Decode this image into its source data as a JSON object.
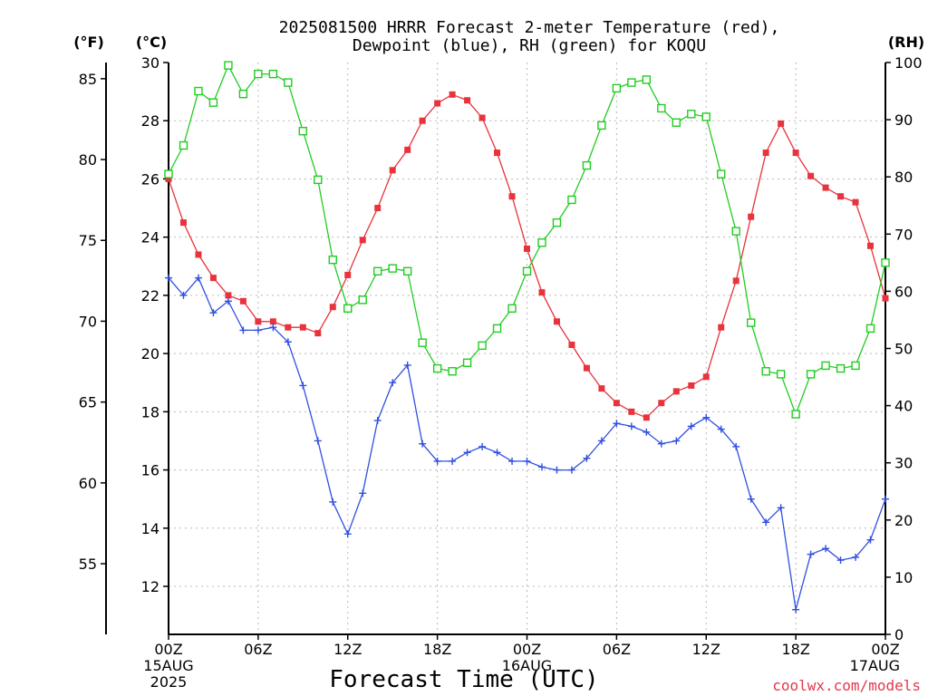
{
  "title_line1": "2025081500 HRRR Forecast 2-meter Temperature (red),",
  "title_line2": "Dewpoint (blue), RH (green) for KOQU",
  "unit_f": "(°F)",
  "unit_c": "(°C)",
  "unit_rh": "(RH)",
  "xlabel": "Forecast Time (UTC)",
  "credit": "coolwx.com/models",
  "chart_data": {
    "type": "line",
    "x_hours": [
      0,
      1,
      2,
      3,
      4,
      5,
      6,
      7,
      8,
      9,
      10,
      11,
      12,
      13,
      14,
      15,
      16,
      17,
      18,
      19,
      20,
      21,
      22,
      23,
      24,
      25,
      26,
      27,
      28,
      29,
      30,
      31,
      32,
      33,
      34,
      35,
      36,
      37,
      38,
      39,
      40,
      41,
      42,
      43,
      44,
      45,
      46,
      47,
      48
    ],
    "x_ticks": [
      {
        "hour": 0,
        "lines": [
          "00Z",
          "15AUG",
          "2025"
        ]
      },
      {
        "hour": 6,
        "lines": [
          "06Z"
        ]
      },
      {
        "hour": 12,
        "lines": [
          "12Z"
        ]
      },
      {
        "hour": 18,
        "lines": [
          "18Z"
        ]
      },
      {
        "hour": 24,
        "lines": [
          "00Z",
          "16AUG"
        ]
      },
      {
        "hour": 30,
        "lines": [
          "06Z"
        ]
      },
      {
        "hour": 36,
        "lines": [
          "12Z"
        ]
      },
      {
        "hour": 42,
        "lines": [
          "18Z"
        ]
      },
      {
        "hour": 48,
        "lines": [
          "00Z",
          "17AUG"
        ]
      }
    ],
    "xlim": [
      0,
      48
    ],
    "y_left_c": {
      "lim": [
        10.35,
        30
      ],
      "ticks": [
        12,
        14,
        16,
        18,
        20,
        22,
        24,
        26,
        28,
        30
      ]
    },
    "y_left_f": {
      "ticks": [
        55,
        60,
        65,
        70,
        75,
        80,
        85
      ]
    },
    "y_right_rh": {
      "lim": [
        0,
        100
      ],
      "ticks": [
        0,
        10,
        20,
        30,
        40,
        50,
        60,
        70,
        80,
        90,
        100
      ]
    },
    "grid": true,
    "series": [
      {
        "name": "Temperature",
        "axis": "c",
        "color": "#e8323c",
        "marker": "square-filled",
        "values": [
          26.0,
          24.5,
          23.4,
          22.6,
          22.0,
          21.8,
          21.1,
          21.1,
          20.9,
          20.9,
          20.7,
          21.6,
          22.7,
          23.9,
          25.0,
          26.3,
          27.0,
          28.0,
          28.6,
          28.9,
          28.7,
          28.1,
          26.9,
          25.4,
          23.6,
          22.1,
          21.1,
          20.3,
          19.5,
          18.8,
          18.3,
          18.0,
          17.8,
          18.3,
          18.7,
          18.9,
          19.2,
          20.9,
          22.5,
          24.7,
          26.9,
          27.9,
          26.9,
          26.1,
          25.7,
          25.4,
          25.2,
          23.7,
          21.9
        ]
      },
      {
        "name": "Dewpoint",
        "axis": "c",
        "color": "#2f4fe0",
        "marker": "plus",
        "values": [
          22.6,
          22.0,
          22.6,
          21.4,
          21.8,
          20.8,
          20.8,
          20.9,
          20.4,
          18.9,
          17.0,
          14.9,
          13.8,
          15.2,
          17.7,
          19.0,
          19.6,
          16.9,
          16.3,
          16.3,
          16.6,
          16.8,
          16.6,
          16.3,
          16.3,
          16.1,
          16.0,
          16.0,
          16.4,
          17.0,
          17.6,
          17.5,
          17.3,
          16.9,
          17.0,
          17.5,
          17.8,
          17.4,
          16.8,
          15.0,
          14.2,
          14.7,
          11.2,
          13.1,
          13.3,
          12.9,
          13.0,
          13.6,
          15.0
        ]
      },
      {
        "name": "RH",
        "axis": "rh",
        "color": "#22cc22",
        "marker": "square-open",
        "values": [
          80.5,
          85.5,
          95.0,
          93.0,
          99.5,
          94.5,
          98.0,
          98.0,
          96.5,
          88.0,
          79.5,
          65.5,
          57.0,
          58.5,
          63.5,
          64.0,
          63.5,
          51.0,
          46.5,
          46.0,
          47.5,
          50.5,
          53.5,
          57.0,
          63.5,
          68.5,
          72.0,
          76.0,
          82.0,
          89.0,
          95.5,
          96.5,
          97.0,
          92.0,
          89.5,
          91.0,
          90.5,
          80.5,
          70.5,
          54.5,
          46.0,
          45.5,
          38.5,
          45.5,
          47.0,
          46.5,
          47.0,
          53.5,
          65.0
        ]
      }
    ]
  }
}
